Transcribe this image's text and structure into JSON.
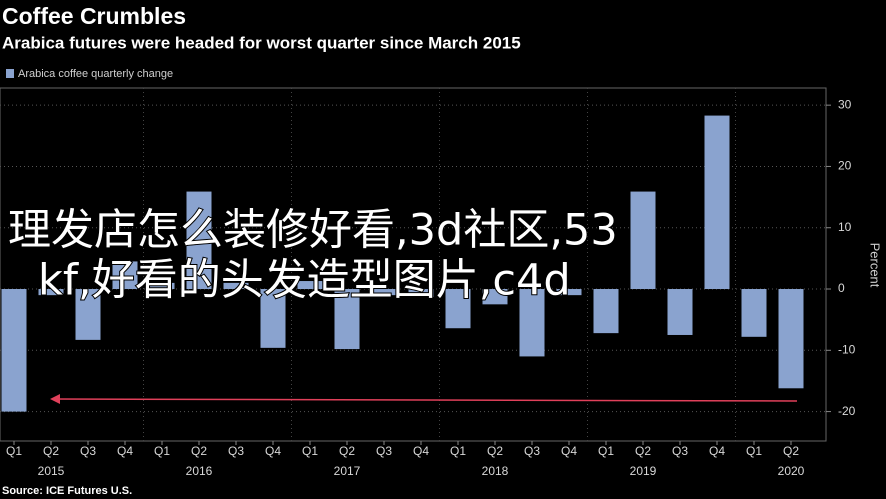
{
  "chart_data": {
    "type": "bar",
    "title": "Coffee Crumbles",
    "subtitle": "Arabica futures were headed for worst quarter since March 2015",
    "categories": [
      "Q1",
      "Q2",
      "Q3",
      "Q4",
      "Q1",
      "Q2",
      "Q3",
      "Q4",
      "Q1",
      "Q2",
      "Q3",
      "Q4",
      "Q1",
      "Q2",
      "Q3",
      "Q4",
      "Q1",
      "Q2",
      "Q3",
      "Q4",
      "Q1",
      "Q2"
    ],
    "year_labels": [
      "2015",
      "2016",
      "2017",
      "2018",
      "2019",
      "2020"
    ],
    "series": [
      {
        "name": "Arabica coffee quarterly change",
        "color": "#8aa3cf",
        "values": [
          -20,
          -1,
          -8.3,
          4.5,
          1,
          15.9,
          1,
          -9.6,
          1.3,
          -9.8,
          -1,
          -1.3,
          -6.4,
          -2.5,
          -11,
          -1,
          -7.2,
          15.9,
          -7.5,
          28.3,
          -7.8,
          -16.2
        ]
      }
    ],
    "y_axis_label": "Percent",
    "ylim": [
      -24.8,
      32.8
    ],
    "yticks": [
      -20,
      -10,
      0,
      10,
      20,
      30
    ],
    "grid": true,
    "source": "Source: ICE Futures U.S."
  },
  "overlay_text": [
    "理发店怎么装修好看,3d社区,53",
    "kf,好看的头发造型图片,c4d"
  ]
}
